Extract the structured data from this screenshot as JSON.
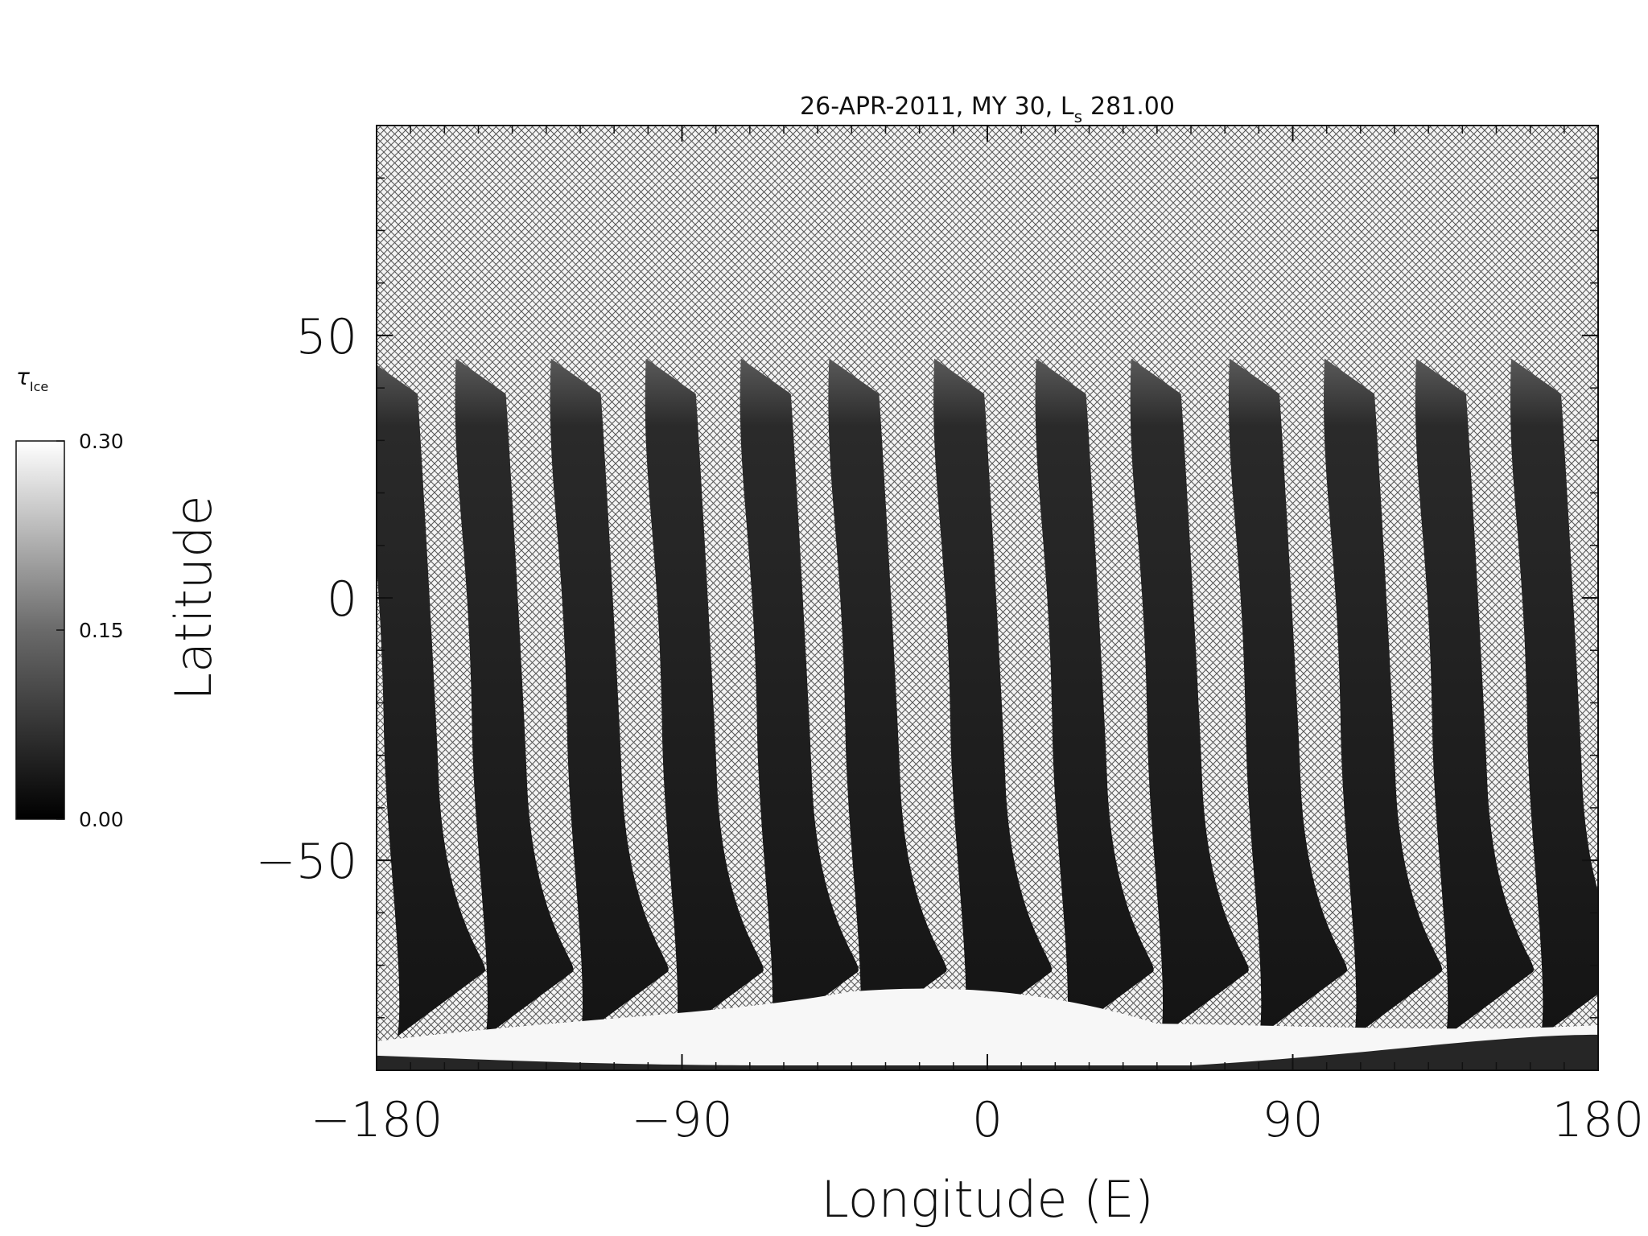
{
  "chart_data": {
    "type": "heatmap",
    "title": "26-APR-2011, MY 30,  L",
    "title_subscript": "s",
    "title_value": "281.00",
    "xlabel": "Longitude (E)",
    "ylabel": "Latitude",
    "xlim": [
      -180,
      180
    ],
    "ylim": [
      -90,
      90
    ],
    "x_ticks": [
      -180,
      -90,
      0,
      90,
      180
    ],
    "x_tick_labels": [
      "−180",
      "−90",
      "0",
      "90",
      "180"
    ],
    "y_ticks": [
      -50,
      0,
      50
    ],
    "y_tick_labels": [
      "−50",
      "0",
      "50"
    ],
    "grid": false,
    "no_data_pattern": "crosshatch",
    "colorbar": {
      "symbol": "τ",
      "subscript": "Ice",
      "min": 0.0,
      "max": 0.3,
      "tick_values": [
        0.0,
        0.15,
        0.3
      ],
      "tick_labels": [
        "0.00",
        "0.15",
        "0.30"
      ],
      "colormap": "grayscale",
      "low_color": "#000000",
      "high_color": "#ffffff",
      "placement": "left"
    },
    "swaths": {
      "count": 13,
      "center_longitudes_at_equator": [
        -171,
        -145,
        -117,
        -89,
        -61,
        -35,
        -4,
        26,
        54,
        83,
        111,
        138,
        166
      ],
      "north_edge_latitude": 45,
      "south_edge_latitude": -82,
      "typical_tau_ice": 0.03
    },
    "polar_cap": {
      "description_value_tau_ice": 0.3,
      "latitude_range": [
        -90,
        -75
      ]
    }
  }
}
